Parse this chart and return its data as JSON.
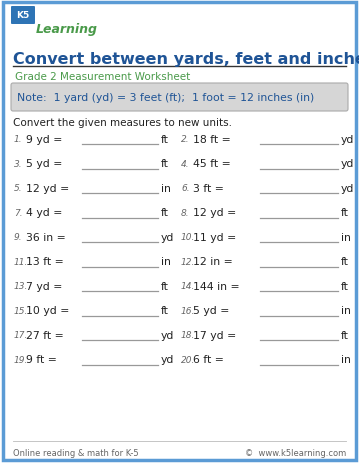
{
  "title": "Convert between yards, feet and inches",
  "subtitle": "Grade 2 Measurement Worksheet",
  "note": "Note:  1 yard (yd) = 3 feet (ft);  1 foot = 12 inches (in)",
  "instruction": "Convert the given measures to new units.",
  "problems_left": [
    {
      "num": "1.",
      "question": "9 yd =",
      "unit": "ft"
    },
    {
      "num": "3.",
      "question": "5 yd =",
      "unit": "ft"
    },
    {
      "num": "5.",
      "question": "12 yd =",
      "unit": "in"
    },
    {
      "num": "7.",
      "question": "4 yd =",
      "unit": "ft"
    },
    {
      "num": "9.",
      "question": "36 in =",
      "unit": "yd"
    },
    {
      "num": "11.",
      "question": "13 ft =",
      "unit": "in"
    },
    {
      "num": "13.",
      "question": "7 yd =",
      "unit": "ft"
    },
    {
      "num": "15.",
      "question": "10 yd =",
      "unit": "ft"
    },
    {
      "num": "17.",
      "question": "27 ft =",
      "unit": "yd"
    },
    {
      "num": "19.",
      "question": "9 ft =",
      "unit": "yd"
    }
  ],
  "problems_right": [
    {
      "num": "2.",
      "question": "18 ft =",
      "unit": "yd"
    },
    {
      "num": "4.",
      "question": "45 ft =",
      "unit": "yd"
    },
    {
      "num": "6.",
      "question": "3 ft =",
      "unit": "yd"
    },
    {
      "num": "8.",
      "question": "12 yd =",
      "unit": "ft"
    },
    {
      "num": "10.",
      "question": "11 yd =",
      "unit": "in"
    },
    {
      "num": "12.",
      "question": "12 in =",
      "unit": "ft"
    },
    {
      "num": "14.",
      "question": "144 in =",
      "unit": "ft"
    },
    {
      "num": "16.",
      "question": "5 yd =",
      "unit": "in"
    },
    {
      "num": "18.",
      "question": "17 yd =",
      "unit": "ft"
    },
    {
      "num": "20.",
      "question": "6 ft =",
      "unit": "in"
    }
  ],
  "footer_left": "Online reading & math for K-5",
  "footer_right": "©  www.k5learning.com",
  "bg_color": "#ffffff",
  "border_color": "#5b9bd5",
  "title_color": "#1f5496",
  "subtitle_color": "#4a9a4a",
  "note_bg": "#d6d6d6",
  "note_color": "#1f5496",
  "text_color": "#222222",
  "footer_color": "#666666",
  "line_color": "#999999"
}
